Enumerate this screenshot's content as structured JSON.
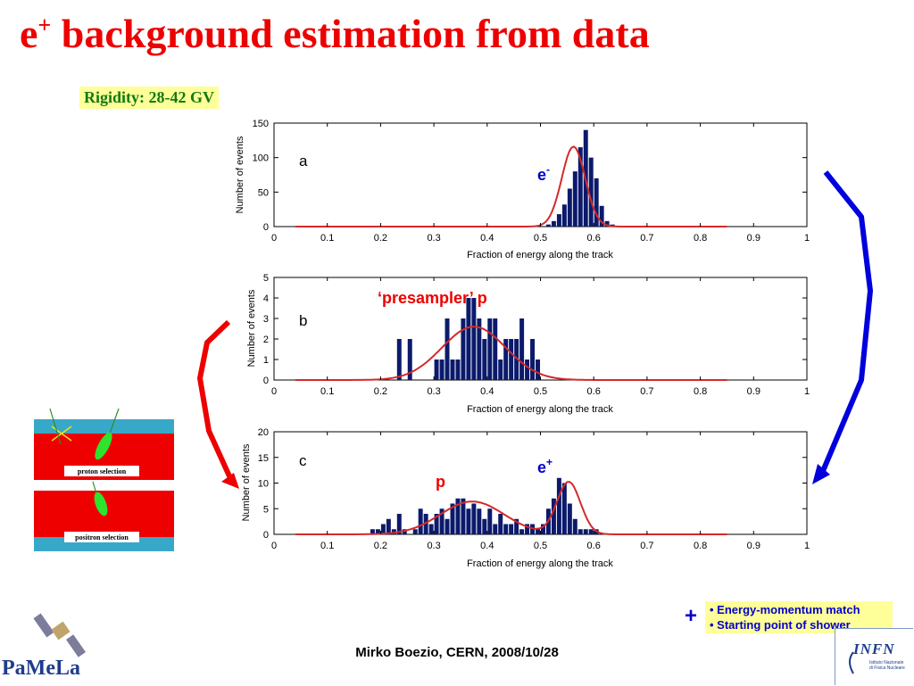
{
  "slide": {
    "title_main": "e",
    "title_sup": "+",
    "title_rest": " background estimation from data",
    "rigidity": "Rigidity: 28-42 GV",
    "notes": [
      "• Energy-momentum match",
      "• Starting point of shower"
    ],
    "plus": "+",
    "footer": "Mirko Boezio, CERN, 2008/10/28",
    "infn_logo": "INFN",
    "infn_sub": [
      "Istituto Nazionale",
      "di Fisica Nucleare"
    ],
    "pamela_logo": "PaMeLa"
  },
  "schematic": {
    "top_label": "proton  selection",
    "bottom_label": "positron selection"
  },
  "colors": {
    "title": "#ee0000",
    "bars": "#0b1a6b",
    "fit": "#d42a2a",
    "annotation_red": "#ee0000",
    "annotation_blue": "#0000cc",
    "arrow_red": "#ee0000",
    "arrow_blue": "#0000dd",
    "highlight": "#ffff99",
    "rigidity_text": "#117a11"
  },
  "chart_data": [
    {
      "type": "bar",
      "panel": "a",
      "xlabel": "Fraction of energy along the track",
      "ylabel": "Number of events",
      "xlim": [
        0,
        1
      ],
      "ylim": [
        0,
        150
      ],
      "xticks": [
        "0",
        "0.1",
        "0.2",
        "0.3",
        "0.4",
        "0.5",
        "0.6",
        "0.7",
        "0.8",
        "0.9",
        "1"
      ],
      "yticks": [
        "0",
        "50",
        "100",
        "150"
      ],
      "annotation": "e",
      "annotation_sup": "-",
      "bins": {
        "start": 0.51,
        "width": 0.01,
        "values": [
          3,
          8,
          18,
          32,
          55,
          80,
          115,
          140,
          100,
          70,
          30,
          8,
          3
        ]
      },
      "fit": {
        "amplitude": 116,
        "mean": 0.562,
        "sigma": 0.022
      }
    },
    {
      "type": "bar",
      "panel": "b",
      "xlabel": "Fraction of energy along the track",
      "ylabel": "Number of events",
      "xlim": [
        0,
        1
      ],
      "ylim": [
        0,
        5
      ],
      "xticks": [
        "0",
        "0.1",
        "0.2",
        "0.3",
        "0.4",
        "0.5",
        "0.6",
        "0.7",
        "0.8",
        "0.9",
        "1"
      ],
      "yticks": [
        "0",
        "1",
        "2",
        "3",
        "4",
        "5"
      ],
      "annotation": "‘presampler’ p",
      "bins": {
        "start": 0.23,
        "width": 0.01,
        "values": [
          2,
          0,
          2,
          0,
          0,
          0,
          0,
          1,
          1,
          3,
          1,
          1,
          3,
          4,
          4,
          3,
          2,
          3,
          3,
          1,
          2,
          2,
          2,
          3,
          1,
          2,
          1
        ]
      },
      "fit": {
        "amplitude": 2.6,
        "mean": 0.375,
        "sigma": 0.06
      }
    },
    {
      "type": "bar",
      "panel": "c",
      "xlabel": "Fraction of energy along the track",
      "ylabel": "Number of events",
      "xlim": [
        0,
        1
      ],
      "ylim": [
        0,
        20
      ],
      "xticks": [
        "0",
        "0.1",
        "0.2",
        "0.3",
        "0.4",
        "0.5",
        "0.6",
        "0.7",
        "0.8",
        "0.9",
        "1"
      ],
      "yticks": [
        "0",
        "5",
        "10",
        "15",
        "20"
      ],
      "annotations": [
        {
          "text": "p",
          "sup": ""
        },
        {
          "text": "e",
          "sup": "+"
        }
      ],
      "bins": {
        "start": 0.18,
        "width": 0.01,
        "values": [
          1,
          1,
          2,
          3,
          1,
          4,
          1,
          0,
          1,
          5,
          4,
          2,
          4,
          5,
          3,
          6,
          7,
          7,
          5,
          6,
          5,
          3,
          5,
          2,
          4,
          2,
          2,
          3,
          1,
          2,
          2,
          1,
          2,
          5,
          7,
          11,
          10,
          6,
          3,
          1,
          1,
          1,
          1
        ]
      },
      "fit": [
        {
          "amplitude": 6.4,
          "mean": 0.372,
          "sigma": 0.06
        },
        {
          "amplitude": 10.2,
          "mean": 0.553,
          "sigma": 0.022
        }
      ]
    }
  ]
}
